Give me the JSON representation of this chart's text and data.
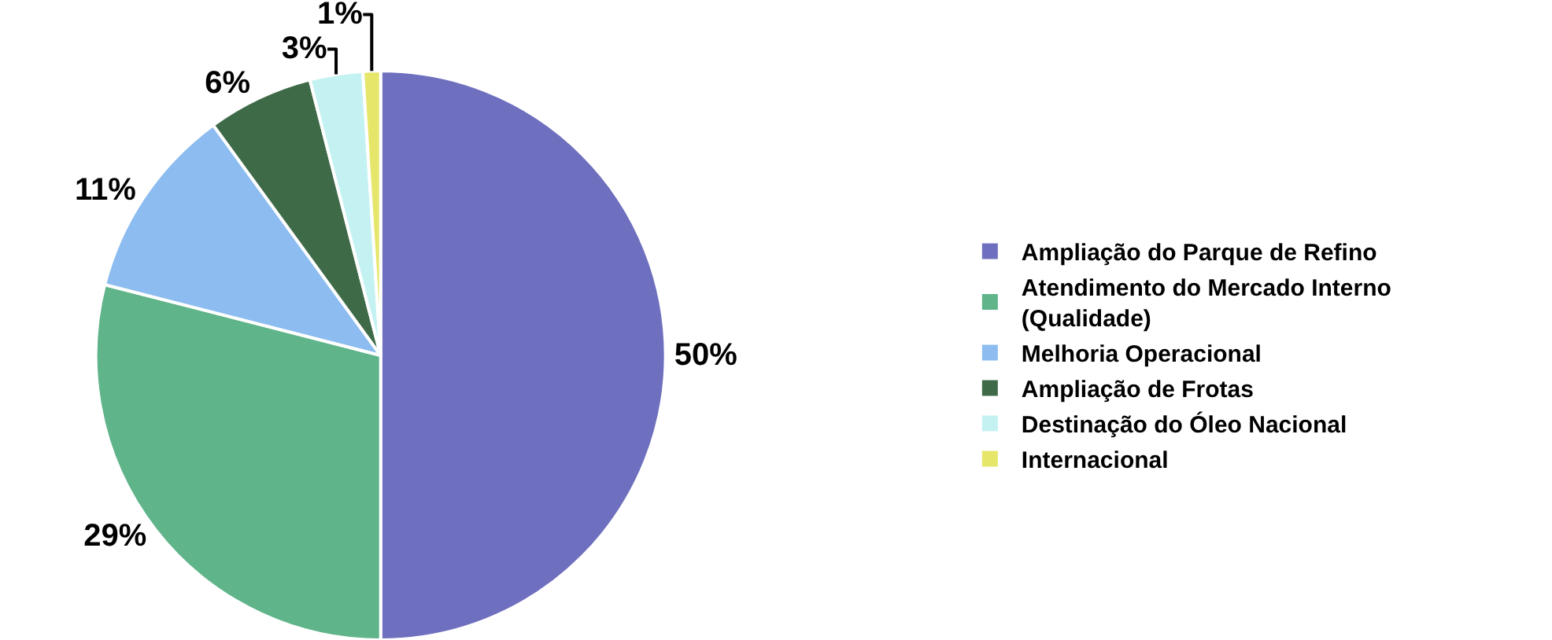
{
  "chart_data": {
    "type": "pie",
    "categories": [
      "Ampliação do Parque de Refino",
      "Atendimento do Mercado Interno (Qualidade)",
      "Melhoria Operacional",
      "Ampliação de Frotas",
      "Destinação do Óleo Nacional",
      "Internacional"
    ],
    "values": [
      50,
      29,
      11,
      6,
      3,
      1
    ],
    "value_labels": [
      "50%",
      "29%",
      "11%",
      "6%",
      "3%",
      "1%"
    ],
    "colors": [
      "#6f6fbf",
      "#5fb48a",
      "#8cbcf0",
      "#3f6a48",
      "#c4f2f2",
      "#e6e66a"
    ],
    "legend": "right"
  }
}
